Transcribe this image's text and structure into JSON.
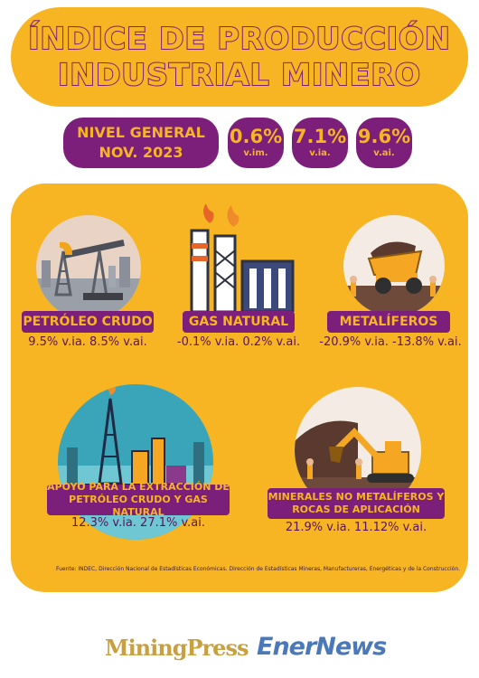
{
  "title": {
    "line1": "ÍNDICE DE PRODUCCIÓN",
    "line2": "INDUSTRIAL MINERO"
  },
  "general": {
    "line1": "NIVEL GENERAL",
    "line2": "NOV. 2023"
  },
  "stats": [
    {
      "value": "0.6%",
      "unit": "v.im."
    },
    {
      "value": "7.1%",
      "unit": "v.ia."
    },
    {
      "value": "9.6%",
      "unit": "v.ai."
    }
  ],
  "sectors": [
    {
      "name": "PETRÓLEO CRUDO",
      "values": "9.5% v.ia. 8.5% v.ai.",
      "icon": "oil-pump-icon"
    },
    {
      "name": "GAS NATURAL",
      "values": "-0.1% v.ia. 0.2% v.ai.",
      "icon": "gas-plant-icon"
    },
    {
      "name": "METALÍFEROS",
      "values": "-20.9% v.ia. -13.8% v.ai.",
      "icon": "mining-truck-icon"
    },
    {
      "name_line1": "APOYO PARA LA EXTRACCIÓN DE",
      "name_line2": "PETRÓLEO CRUDO Y GAS NATURAL",
      "values": "12.3% v.ia. 27.1% v.ai.",
      "icon": "oil-rig-icon"
    },
    {
      "name_line1": "MINERALES NO METALÍFEROS Y",
      "name_line2": "ROCAS DE APLICACIÓN",
      "values": "21.9% v.ia. 11.12% v.ai.",
      "icon": "excavator-icon"
    }
  ],
  "source": "Fuente: INDEC, Dirección Nacional de Estadísticas Económicas. Dirección de Estadísticas Mineras, Manufactureras, Energéticas y de la Construcción.",
  "logos": {
    "miningpress": "MiningPress",
    "enernews": "EnerNews"
  },
  "colors": {
    "yellow": "#f7b523",
    "purple": "#7b1f7a"
  }
}
